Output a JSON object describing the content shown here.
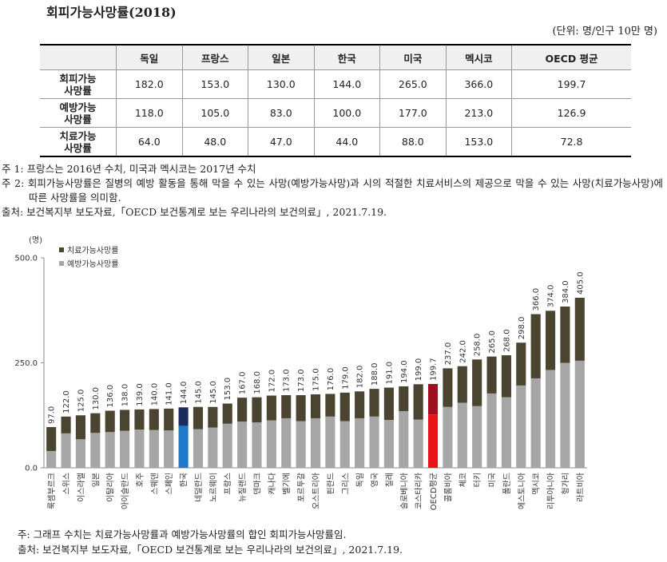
{
  "header": {
    "title": "회피가능사망률(2018)",
    "unit": "(단위: 명/인구 10만 명)"
  },
  "table": {
    "columns": [
      "독일",
      "프랑스",
      "일본",
      "한국",
      "미국",
      "멕시코",
      "OECD 평균"
    ],
    "rows": [
      {
        "label": [
          "회피가능",
          "사망률"
        ],
        "cells": [
          "182.0",
          "153.0",
          "130.0",
          "144.0",
          "265.0",
          "366.0",
          "199.7"
        ]
      },
      {
        "label": [
          "예방가능",
          "사망률"
        ],
        "cells": [
          "118.0",
          "105.0",
          "83.0",
          "100.0",
          "177.0",
          "213.0",
          "126.9"
        ]
      },
      {
        "label": [
          "치료가능",
          "사망률"
        ],
        "cells": [
          "64.0",
          "48.0",
          "47.0",
          "44.0",
          "88.0",
          "153.0",
          "72.8"
        ]
      }
    ]
  },
  "notes": [
    "주 1: 프랑스는 2016년 수치, 미국과 멕시코는 2017년 수치",
    "주 2: 회피가능사망률은 질병의 예방 활동을 통해 막을 수 있는 사망(예방가능사망)과 시의 적절한 치료서비스의 제공으로 막을 수 있는 사망(치료가능사망)에 따른 사망률을 의미함.",
    "출처: 보건복지부 보도자료,「OECD 보건통계로 보는 우리나라의 보건의료」, 2021.7.19."
  ],
  "chart_data": {
    "type": "stacked_bar",
    "y_unit": "(명)",
    "categories": [
      "룩셈부르크",
      "스위스",
      "이스라엘",
      "일본",
      "이탈리아",
      "아이슬란드",
      "호주",
      "스웨덴",
      "스페인",
      "한국",
      "네덜란드",
      "노르웨이",
      "프랑스",
      "뉴질랜드",
      "덴마크",
      "캐나다",
      "벨기에",
      "포르투갈",
      "오스트리아",
      "핀란드",
      "그리스",
      "독일",
      "영국",
      "칠레",
      "슬로베니아",
      "코스타리카",
      "OECD평균",
      "콜롬비아",
      "체코",
      "터키",
      "미국",
      "폴란드",
      "에스토니아",
      "멕시코",
      "리투아니아",
      "헝가리",
      "라트비아"
    ],
    "series": [
      {
        "name": "예방가능사망률",
        "color": "#a6a6a6",
        "values": [
          40,
          82,
          68,
          83,
          85,
          88,
          91,
          90,
          89,
          100,
          92,
          96,
          105,
          110,
          108,
          113,
          118,
          111,
          118,
          122,
          111,
          118,
          122,
          114,
          135,
          115,
          126.9,
          145,
          155,
          147,
          177,
          168,
          196,
          213,
          233,
          250,
          255
        ]
      },
      {
        "name": "치료가능사망률",
        "color": "#4b4431",
        "values": [
          57,
          40,
          57,
          47,
          51,
          50,
          48,
          50,
          52,
          44,
          53,
          49,
          48,
          57,
          60,
          59,
          55,
          62,
          57,
          54,
          68,
          64,
          66,
          77,
          59,
          84,
          72.8,
          92,
          87,
          111,
          88,
          100,
          102,
          153,
          141,
          134,
          150
        ]
      }
    ],
    "totals": [
      97,
      122,
      125,
      130,
      136,
      138,
      139,
      140,
      141,
      144,
      145,
      145,
      153,
      167,
      168,
      172,
      173,
      173,
      175,
      176,
      179,
      182,
      188,
      191,
      194,
      199,
      199.7,
      237,
      242,
      258,
      265,
      268,
      298,
      366,
      374,
      384,
      405
    ],
    "total_labels": [
      "97.0",
      "122.0",
      "125.0",
      "130.0",
      "136.0",
      "138.0",
      "139.0",
      "140.0",
      "141.0",
      "144.0",
      "145.0",
      "145.0",
      "153.0",
      "167.0",
      "168.0",
      "172.0",
      "173.0",
      "173.0",
      "175.0",
      "176.0",
      "179.0",
      "182.0",
      "188.0",
      "191.0",
      "194.0",
      "199.0",
      "199.7",
      "237.0",
      "242.0",
      "258.0",
      "265.0",
      "268.0",
      "298.0",
      "366.0",
      "374.0",
      "384.0",
      "405.0"
    ],
    "highlights": [
      {
        "category": "한국",
        "colors": [
          "#1f78c8",
          "#1b2b5e"
        ]
      },
      {
        "category": "OECD평균",
        "colors": [
          "#e8141b",
          "#9e1020"
        ]
      }
    ],
    "ylim": [
      0,
      500
    ],
    "yticks": [
      {
        "value": 0,
        "label": "0.0"
      },
      {
        "value": 250,
        "label": "250.0"
      },
      {
        "value": 500,
        "label": "500.0"
      }
    ],
    "grid": false,
    "legend": "upper left"
  },
  "footer": {
    "notes": [
      "주: 그래프 수치는 치료가능사망률과 예방가능사망률의 합인 회피가능사망률임.",
      "출처: 보건복지부 보도자료,「OECD 보건통계로 보는 우리나라의 보건의료」, 2021.7.19."
    ]
  }
}
